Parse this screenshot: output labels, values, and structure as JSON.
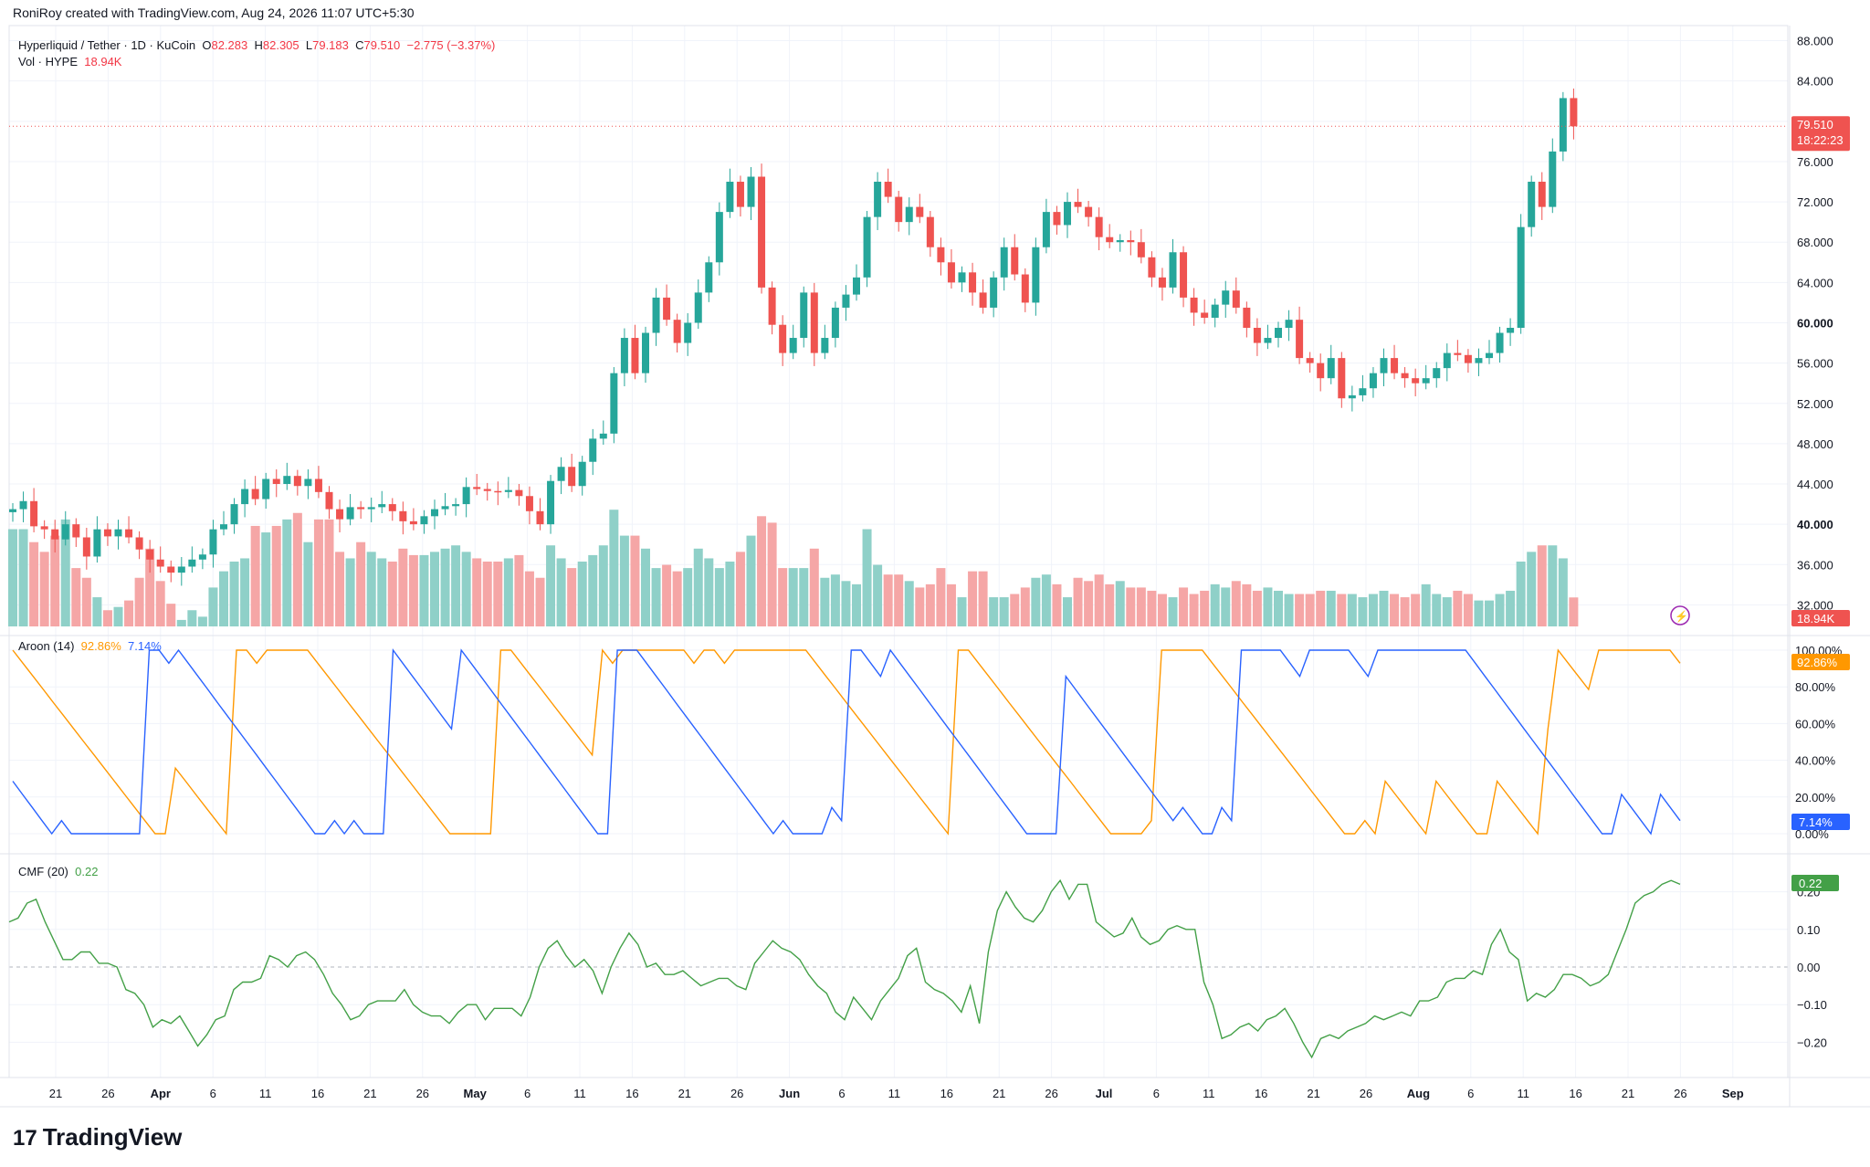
{
  "header": {
    "created_by": "RoniRoy created with TradingView.com, Aug 24, 2026 11:07 UTC+5:30"
  },
  "legend": {
    "symbol": "Hyperliquid / Tether · 1D · KuCoin",
    "open_label": "O",
    "open": "82.283",
    "high_label": "H",
    "high": "82.305",
    "low_label": "L",
    "low": "79.183",
    "close_label": "C",
    "close": "79.510",
    "change": "−2.775 (−3.37%)",
    "vol_label": "Vol · HYPE",
    "vol": "18.94K"
  },
  "aroon_legend": {
    "label": "Aroon (14)",
    "up": "92.86%",
    "down": "7.14%"
  },
  "cmf_legend": {
    "label": "CMF (20)",
    "value": "0.22"
  },
  "brand": {
    "name": "TradingView",
    "logo": "17"
  },
  "colors": {
    "up": "#26a69a",
    "down": "#ef5350",
    "up_vol": "#8fd0c8",
    "down_vol": "#f5a6a6",
    "aroon_up": "#ff9800",
    "aroon_down": "#2962ff",
    "cmf": "#43a047",
    "grid": "#f0f3fa",
    "axis_text": "#131722"
  },
  "chart_data": [
    {
      "type": "candlestick",
      "title": "Hyperliquid / Tether · 1D · KuCoin",
      "x_labels": [
        "21",
        "26",
        "Apr",
        "6",
        "11",
        "16",
        "21",
        "26",
        "May",
        "6",
        "11",
        "16",
        "21",
        "26",
        "Jun",
        "6",
        "11",
        "16",
        "21",
        "26",
        "Jul",
        "6",
        "11",
        "16",
        "21",
        "26",
        "Aug",
        "6",
        "11",
        "16",
        "21",
        "26",
        "Sep"
      ],
      "y_ticks": [
        "88.000",
        "84.000",
        "80.000",
        "76.000",
        "72.000",
        "68.000",
        "64.000",
        "60.000",
        "56.000",
        "52.000",
        "48.000",
        "44.000",
        "40.000",
        "36.000",
        "32.000"
      ],
      "ylim": [
        29.5,
        89.5
      ],
      "last_price": "79.510",
      "countdown": "18:22:23",
      "closes": [
        41.5,
        42.3,
        39.8,
        39.5,
        38.5,
        40.0,
        38.7,
        36.8,
        39.5,
        38.8,
        39.5,
        38.7,
        37.5,
        36.5,
        35.8,
        35.2,
        35.8,
        36.5,
        37.0,
        39.5,
        40.0,
        42.0,
        43.5,
        42.5,
        44.5,
        44.0,
        44.8,
        43.8,
        44.5,
        43.2,
        41.5,
        40.5,
        41.7,
        41.5,
        41.7,
        42.0,
        41.3,
        40.3,
        40.0,
        40.8,
        41.5,
        41.8,
        42.0,
        43.7,
        43.5,
        43.3,
        43.2,
        43.4,
        42.8,
        41.3,
        40.0,
        44.3,
        45.7,
        43.8,
        46.2,
        48.5,
        49.0,
        55.0,
        58.5,
        55.0,
        59.0,
        62.5,
        60.3,
        58.0,
        60.0,
        63.0,
        66.0,
        71.0,
        74.0,
        71.5,
        74.5,
        63.5,
        59.8,
        57.0,
        58.5,
        63.0,
        57.0,
        58.5,
        61.5,
        62.8,
        64.5,
        70.5,
        74.0,
        72.5,
        70.0,
        71.5,
        70.5,
        67.5,
        66.0,
        64.0,
        65.0,
        63.0,
        61.5,
        64.5,
        67.5,
        64.8,
        62.0,
        67.5,
        71.0,
        69.7,
        72.0,
        71.5,
        70.5,
        68.5,
        68.0,
        68.2,
        68.0,
        66.5,
        64.5,
        63.5,
        67.0,
        62.5,
        61.0,
        60.5,
        61.8,
        63.2,
        61.5,
        59.5,
        58.0,
        58.5,
        59.5,
        60.3,
        56.5,
        56.0,
        54.5,
        56.5,
        52.5,
        52.8,
        53.5,
        55.0,
        56.5,
        55.0,
        54.5,
        54.0,
        54.5,
        55.5,
        57.0,
        56.8,
        56.0,
        56.5,
        57.0,
        59.0,
        59.5,
        69.5,
        74.0,
        71.5,
        77.0,
        82.3,
        79.5
      ],
      "volumes_k": [
        40,
        40,
        36,
        33,
        38,
        43,
        28,
        25,
        19,
        15,
        16,
        18,
        25,
        34,
        24,
        17,
        12,
        15,
        13,
        22,
        27,
        30,
        31,
        41,
        39,
        41,
        43,
        45,
        36,
        43,
        43,
        33,
        31,
        36,
        33,
        31,
        30,
        34,
        32,
        32,
        33,
        34,
        35,
        33,
        31,
        30,
        30,
        31,
        32,
        27,
        25,
        35,
        31,
        28,
        30,
        32,
        35,
        46,
        38,
        38,
        34,
        28,
        29,
        27,
        28,
        34,
        31,
        28,
        30,
        33,
        38,
        44,
        42,
        28,
        28,
        28,
        34,
        25,
        26,
        24,
        23,
        40,
        29,
        26,
        26,
        24,
        22,
        23,
        28,
        23,
        19,
        27,
        27,
        19,
        19,
        20,
        22,
        25,
        26,
        23,
        19,
        25,
        24,
        26,
        23,
        24,
        22,
        22,
        21,
        20,
        19,
        22,
        20,
        21,
        23,
        22,
        24,
        23,
        21,
        22,
        21,
        20,
        20,
        20,
        21,
        21,
        20,
        20,
        19,
        20,
        21,
        20,
        19,
        20,
        23,
        20,
        19,
        21,
        20,
        18,
        18,
        20,
        21,
        30,
        33,
        35,
        35,
        31,
        18.94
      ],
      "volume_label": "18.94K"
    },
    {
      "type": "line",
      "title": "Aroon (14)",
      "y_ticks": [
        "100.00%",
        "80.00%",
        "60.00%",
        "40.00%",
        "20.00%",
        "0.00%"
      ],
      "ylim": [
        0,
        100
      ],
      "series": [
        {
          "name": "Aroon Up",
          "values": [
            100,
            92.9,
            85.7,
            78.6,
            71.4,
            64.3,
            57.1,
            50,
            42.9,
            35.7,
            28.6,
            21.4,
            14.3,
            7.1,
            0,
            0,
            35.7,
            28.6,
            21.4,
            14.3,
            7.1,
            0,
            100,
            100,
            92.9,
            100,
            100,
            100,
            100,
            100,
            92.9,
            85.7,
            78.6,
            71.4,
            64.3,
            57.1,
            50,
            42.9,
            35.7,
            28.6,
            21.4,
            14.3,
            7.1,
            0,
            0,
            0,
            0,
            0,
            100,
            100,
            92.9,
            85.7,
            78.6,
            71.4,
            64.3,
            57.1,
            50,
            42.9,
            100,
            92.9,
            100,
            100,
            100,
            100,
            100,
            100,
            100,
            92.9,
            100,
            100,
            92.9,
            100,
            100,
            100,
            100,
            100,
            100,
            100,
            100,
            92.9,
            85.7,
            78.6,
            71.4,
            64.3,
            57.1,
            50,
            42.9,
            35.7,
            28.6,
            21.4,
            14.3,
            7.1,
            0,
            100,
            100,
            92.9,
            85.7,
            78.6,
            71.4,
            64.3,
            57.1,
            50,
            42.9,
            35.7,
            28.6,
            21.4,
            14.3,
            7.1,
            0,
            0,
            0,
            0,
            7.1,
            100,
            100,
            100,
            100,
            100,
            92.9,
            85.7,
            78.6,
            71.4,
            64.3,
            57.1,
            50,
            42.9,
            35.7,
            28.6,
            21.4,
            14.3,
            7.1,
            0,
            0,
            7.1,
            0,
            28.6,
            21.4,
            14.3,
            7.1,
            0,
            28.6,
            21.4,
            14.3,
            7.1,
            0,
            0,
            28.6,
            21.4,
            14.3,
            7.1,
            0,
            57.1,
            100,
            92.9,
            85.7,
            78.6,
            100,
            100,
            100,
            100,
            100,
            100,
            100,
            100,
            92.9
          ]
        },
        {
          "name": "Aroon Down",
          "values": [
            28.6,
            21.4,
            14.3,
            7.1,
            0,
            7.1,
            0,
            0,
            0,
            0,
            0,
            0,
            0,
            0,
            100,
            100,
            92.9,
            100,
            92.9,
            85.7,
            78.6,
            71.4,
            64.3,
            57.1,
            50,
            42.9,
            35.7,
            28.6,
            21.4,
            14.3,
            7.1,
            0,
            0,
            7.1,
            0,
            7.1,
            0,
            0,
            0,
            100,
            92.9,
            85.7,
            78.6,
            71.4,
            64.3,
            57.1,
            100,
            92.9,
            85.7,
            78.6,
            71.4,
            64.3,
            57.1,
            50,
            42.9,
            35.7,
            28.6,
            21.4,
            14.3,
            7.1,
            0,
            0,
            100,
            100,
            100,
            92.9,
            85.7,
            78.6,
            71.4,
            64.3,
            57.1,
            50,
            42.9,
            35.7,
            28.6,
            21.4,
            14.3,
            7.1,
            0,
            7.1,
            0,
            0,
            0,
            0,
            14.3,
            7.1,
            100,
            100,
            92.9,
            85.7,
            100,
            92.9,
            85.7,
            78.6,
            71.4,
            64.3,
            57.1,
            50,
            42.9,
            35.7,
            28.6,
            21.4,
            14.3,
            7.1,
            0,
            0,
            0,
            0,
            85.7,
            78.6,
            71.4,
            64.3,
            57.1,
            50,
            42.9,
            35.7,
            28.6,
            21.4,
            14.3,
            7.1,
            14.3,
            7.1,
            0,
            0,
            14.3,
            7.1,
            100,
            100,
            100,
            100,
            100,
            92.9,
            85.7,
            100,
            100,
            100,
            100,
            100,
            92.9,
            85.7,
            100,
            100,
            100,
            100,
            100,
            100,
            100,
            100,
            100,
            100,
            92.9,
            85.7,
            78.6,
            71.4,
            64.3,
            57.1,
            50,
            42.9,
            35.7,
            28.6,
            21.4,
            14.3,
            7.1,
            0,
            0,
            21.4,
            14.3,
            7.1,
            0,
            21.4,
            14.3,
            7.1
          ]
        }
      ]
    },
    {
      "type": "line",
      "title": "CMF (20)",
      "y_ticks": [
        "0.20",
        "0.10",
        "0.00",
        "−0.10",
        "−0.20"
      ],
      "ylim": [
        -0.29,
        0.25
      ],
      "series": [
        {
          "name": "CMF",
          "values": [
            0.12,
            0.13,
            0.17,
            0.18,
            0.12,
            0.07,
            0.02,
            0.02,
            0.04,
            0.04,
            0.01,
            0.01,
            0.0,
            -0.06,
            -0.07,
            -0.1,
            -0.16,
            -0.14,
            -0.15,
            -0.13,
            -0.17,
            -0.21,
            -0.18,
            -0.14,
            -0.13,
            -0.06,
            -0.04,
            -0.04,
            -0.03,
            0.03,
            0.02,
            0.0,
            0.03,
            0.04,
            0.02,
            -0.02,
            -0.07,
            -0.1,
            -0.14,
            -0.13,
            -0.1,
            -0.09,
            -0.09,
            -0.09,
            -0.06,
            -0.1,
            -0.12,
            -0.13,
            -0.13,
            -0.15,
            -0.12,
            -0.1,
            -0.1,
            -0.14,
            -0.11,
            -0.11,
            -0.11,
            -0.13,
            -0.08,
            0.0,
            0.05,
            0.07,
            0.03,
            0.0,
            0.02,
            -0.01,
            -0.07,
            0.0,
            0.05,
            0.09,
            0.06,
            0.0,
            0.01,
            -0.02,
            -0.02,
            -0.01,
            -0.03,
            -0.05,
            -0.04,
            -0.03,
            -0.03,
            -0.05,
            -0.06,
            0.01,
            0.04,
            0.07,
            0.05,
            0.04,
            0.02,
            -0.02,
            -0.05,
            -0.07,
            -0.12,
            -0.14,
            -0.08,
            -0.11,
            -0.14,
            -0.09,
            -0.06,
            -0.03,
            0.03,
            0.05,
            -0.04,
            -0.06,
            -0.07,
            -0.09,
            -0.12,
            -0.05,
            -0.15,
            0.04,
            0.15,
            0.2,
            0.16,
            0.13,
            0.12,
            0.15,
            0.2,
            0.23,
            0.18,
            0.22,
            0.22,
            0.12,
            0.1,
            0.08,
            0.09,
            0.13,
            0.08,
            0.06,
            0.07,
            0.1,
            0.11,
            0.1,
            0.1,
            -0.04,
            -0.1,
            -0.19,
            -0.18,
            -0.16,
            -0.15,
            -0.17,
            -0.14,
            -0.13,
            -0.11,
            -0.15,
            -0.2,
            -0.24,
            -0.19,
            -0.18,
            -0.19,
            -0.17,
            -0.16,
            -0.15,
            -0.13,
            -0.14,
            -0.13,
            -0.12,
            -0.13,
            -0.09,
            -0.09,
            -0.08,
            -0.04,
            -0.03,
            -0.03,
            -0.01,
            -0.02,
            0.06,
            0.1,
            0.04,
            0.02,
            -0.09,
            -0.07,
            -0.08,
            -0.06,
            -0.02,
            -0.02,
            -0.03,
            -0.05,
            -0.04,
            -0.02,
            0.04,
            0.1,
            0.17,
            0.19,
            0.2,
            0.22,
            0.23,
            0.22
          ]
        }
      ]
    }
  ]
}
